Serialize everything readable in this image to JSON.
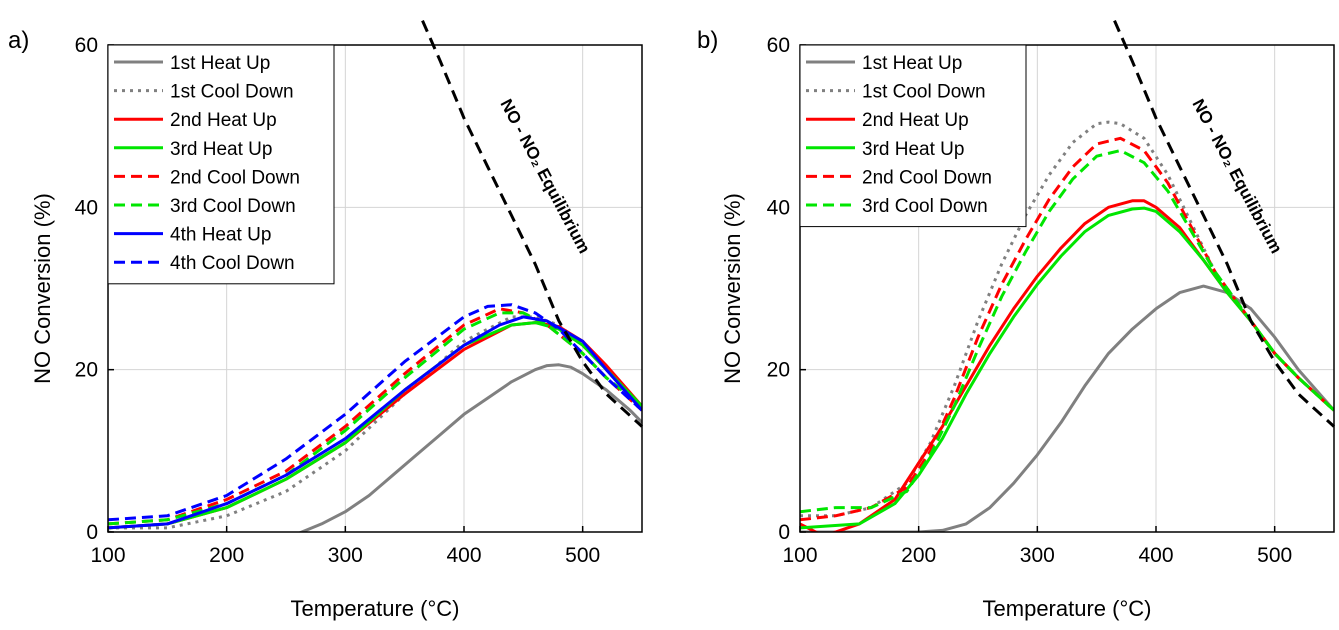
{
  "chart_data": [
    {
      "panel_label": "a)",
      "type": "line",
      "xlabel": "Temperature (°C)",
      "ylabel": "NO Conversion (%)",
      "xlim": [
        100,
        550
      ],
      "ylim": [
        0,
        60
      ],
      "xticks": [
        100,
        200,
        300,
        400,
        500
      ],
      "yticks": [
        0,
        20,
        40,
        60
      ],
      "grid": true,
      "legend_position": "top-left",
      "equilibrium_label": "NO - NO₂ Equilibrium",
      "equilibrium": {
        "x": [
          365,
          380,
          400,
          420,
          440,
          460,
          480,
          500,
          520,
          535,
          550
        ],
        "y": [
          63,
          58,
          51,
          45,
          39,
          33,
          26,
          21,
          17,
          15,
          13
        ]
      },
      "series": [
        {
          "name": "1st Heat Up",
          "color": "#808080",
          "dash": "solid",
          "x": [
            100,
            120,
            150,
            180,
            200,
            220,
            240,
            260,
            280,
            300,
            320,
            340,
            360,
            380,
            400,
            420,
            440,
            460,
            470,
            480,
            490,
            500,
            520,
            540,
            550
          ],
          "y": [
            0,
            -0.5,
            -1,
            -1.3,
            -1.5,
            -1.4,
            -1,
            -0.2,
            1,
            2.5,
            4.5,
            7,
            9.5,
            12,
            14.5,
            16.5,
            18.5,
            20,
            20.5,
            20.6,
            20.3,
            19.5,
            17.5,
            15,
            13.5
          ]
        },
        {
          "name": "1st Cool Down",
          "color": "#808080",
          "dash": "dotted",
          "x": [
            100,
            150,
            200,
            250,
            300,
            350,
            400,
            440,
            460,
            480,
            500,
            520,
            550
          ],
          "y": [
            0.5,
            0.5,
            2,
            5,
            10,
            17,
            23.5,
            26.5,
            26.5,
            25.5,
            23,
            20,
            15
          ]
        },
        {
          "name": "2nd Heat Up",
          "color": "#ff0000",
          "dash": "solid",
          "x": [
            100,
            150,
            200,
            250,
            300,
            350,
            400,
            440,
            460,
            480,
            500,
            520,
            550
          ],
          "y": [
            0.5,
            1,
            3,
            6.5,
            11,
            17,
            22.5,
            25.5,
            25.8,
            25.3,
            23.5,
            20.5,
            15.5
          ]
        },
        {
          "name": "3rd Heat Up",
          "color": "#00e600",
          "dash": "solid",
          "x": [
            100,
            150,
            200,
            250,
            300,
            350,
            400,
            440,
            460,
            480,
            500,
            520,
            550
          ],
          "y": [
            0.5,
            1,
            3,
            6.5,
            11,
            17.5,
            23,
            25.5,
            25.8,
            25,
            23,
            20,
            15.5
          ]
        },
        {
          "name": "2nd Cool Down",
          "color": "#ff0000",
          "dash": "dashed",
          "x": [
            100,
            150,
            200,
            250,
            300,
            350,
            400,
            430,
            450,
            470,
            500,
            520,
            550
          ],
          "y": [
            1,
            1.5,
            4,
            7.5,
            13,
            19.5,
            25.5,
            27.5,
            27,
            25.5,
            22,
            19,
            15
          ]
        },
        {
          "name": "3rd Cool Down",
          "color": "#00e600",
          "dash": "dashed",
          "x": [
            100,
            150,
            200,
            250,
            300,
            350,
            400,
            430,
            450,
            470,
            500,
            520,
            550
          ],
          "y": [
            1,
            1.5,
            3.5,
            7,
            12.5,
            19,
            25,
            27,
            27,
            25.5,
            22,
            19,
            15.5
          ]
        },
        {
          "name": "4th Heat Up",
          "color": "#0000ff",
          "dash": "solid",
          "x": [
            100,
            150,
            200,
            250,
            300,
            350,
            400,
            430,
            450,
            470,
            500,
            520,
            550
          ],
          "y": [
            0.5,
            1,
            3.5,
            7,
            11.5,
            17.5,
            23,
            25.5,
            26.5,
            26,
            23.5,
            20,
            15
          ]
        },
        {
          "name": "4th Cool Down",
          "color": "#0000ff",
          "dash": "dashed",
          "x": [
            100,
            150,
            200,
            250,
            300,
            350,
            400,
            420,
            440,
            460,
            480,
            500,
            520,
            550
          ],
          "y": [
            1.5,
            2,
            4.5,
            9,
            14.5,
            21,
            26.5,
            27.8,
            28,
            27,
            25,
            22,
            19,
            15
          ]
        }
      ]
    },
    {
      "panel_label": "b)",
      "type": "line",
      "xlabel": "Temperature (°C)",
      "ylabel": "NO Conversion (%)",
      "xlim": [
        100,
        550
      ],
      "ylim": [
        0,
        60
      ],
      "xticks": [
        100,
        200,
        300,
        400,
        500
      ],
      "yticks": [
        0,
        20,
        40,
        60
      ],
      "grid": true,
      "legend_position": "top-left",
      "equilibrium_label": "NO - NO₂ Equilibrium",
      "equilibrium": {
        "x": [
          365,
          380,
          400,
          420,
          440,
          460,
          480,
          500,
          520,
          535,
          550
        ],
        "y": [
          63,
          58,
          51,
          45,
          39,
          33,
          26,
          21,
          17,
          15,
          13
        ]
      },
      "series": [
        {
          "name": "1st Heat Up",
          "color": "#808080",
          "dash": "solid",
          "x": [
            100,
            150,
            200,
            220,
            240,
            260,
            280,
            300,
            320,
            340,
            360,
            380,
            400,
            420,
            440,
            460,
            480,
            500,
            520,
            550
          ],
          "y": [
            0,
            0,
            0,
            0.2,
            1,
            3,
            6,
            9.5,
            13.5,
            18,
            22,
            25,
            27.5,
            29.5,
            30.3,
            29.5,
            27.5,
            24,
            20,
            15
          ]
        },
        {
          "name": "1st Cool Down",
          "color": "#808080",
          "dash": "dotted",
          "x": [
            100,
            130,
            160,
            190,
            210,
            230,
            250,
            270,
            290,
            310,
            330,
            350,
            360,
            370,
            390,
            410,
            430,
            450,
            480,
            500,
            520,
            550
          ],
          "y": [
            2,
            2,
            3,
            6,
            11,
            18,
            26,
            33,
            39,
            44,
            48,
            50.3,
            50.5,
            50.3,
            48.5,
            44,
            38,
            32,
            26,
            22,
            19,
            15
          ]
        },
        {
          "name": "2nd Heat Up",
          "color": "#ff0000",
          "dash": "solid",
          "x": [
            100,
            120,
            150,
            180,
            200,
            220,
            240,
            260,
            280,
            300,
            320,
            340,
            360,
            380,
            390,
            400,
            420,
            440,
            460,
            480,
            500,
            520,
            550
          ],
          "y": [
            1,
            -0.5,
            1,
            4,
            8.5,
            13,
            18,
            23,
            27.5,
            31.5,
            35,
            38,
            40,
            40.8,
            40.8,
            40,
            37.5,
            33.5,
            29.5,
            26,
            22,
            19,
            15
          ]
        },
        {
          "name": "3rd Heat Up",
          "color": "#00e600",
          "dash": "solid",
          "x": [
            100,
            150,
            180,
            200,
            220,
            240,
            260,
            280,
            300,
            320,
            340,
            360,
            380,
            390,
            400,
            420,
            440,
            460,
            480,
            500,
            520,
            550
          ],
          "y": [
            0.5,
            1,
            3.5,
            7,
            11.5,
            17,
            22,
            26.5,
            30.5,
            34,
            37,
            39,
            39.8,
            39.9,
            39.5,
            37,
            33.5,
            29.5,
            26,
            22,
            19,
            15
          ]
        },
        {
          "name": "2nd Cool Down",
          "color": "#ff0000",
          "dash": "dashed",
          "x": [
            100,
            130,
            160,
            190,
            210,
            230,
            250,
            270,
            290,
            310,
            330,
            350,
            370,
            390,
            410,
            430,
            450,
            480,
            500,
            520,
            550
          ],
          "y": [
            1.5,
            2,
            3,
            5.5,
            10,
            16.5,
            24,
            30.5,
            36,
            41,
            45,
            47.8,
            48.5,
            47,
            43,
            37.5,
            32,
            26,
            22,
            19,
            15
          ]
        },
        {
          "name": "3rd Cool Down",
          "color": "#00e600",
          "dash": "dashed",
          "x": [
            100,
            130,
            160,
            190,
            210,
            230,
            250,
            270,
            290,
            310,
            330,
            350,
            370,
            390,
            410,
            430,
            450,
            480,
            500,
            520,
            550
          ],
          "y": [
            2.5,
            3,
            3,
            5,
            9.5,
            15.5,
            22.5,
            29,
            34.5,
            39.5,
            43.5,
            46.3,
            47,
            45.5,
            42,
            37,
            32,
            26,
            22,
            19,
            15
          ]
        }
      ]
    }
  ]
}
